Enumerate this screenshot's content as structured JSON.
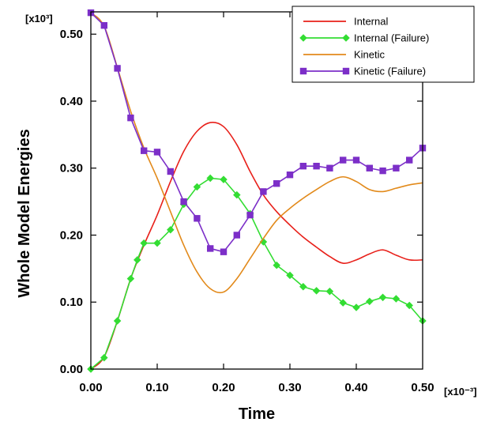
{
  "chart_data": {
    "type": "line",
    "xlabel": "Time",
    "ylabel": "Whole Model Energies",
    "x_multiplier": "[x10⁻³]",
    "y_multiplier": "[x10³]",
    "xlim": [
      0,
      0.5
    ],
    "ylim": [
      0,
      0.5333
    ],
    "x_ticks": [
      "0.00",
      "0.10",
      "0.20",
      "0.30",
      "0.40",
      "0.50"
    ],
    "y_ticks": [
      "0.00",
      "0.10",
      "0.20",
      "0.30",
      "0.40",
      "0.50"
    ],
    "legend_position": "top-right",
    "series": [
      {
        "name": "Internal",
        "color": "#e8201a",
        "marker": "none",
        "x": [
          0.0,
          0.02,
          0.04,
          0.06,
          0.08,
          0.1,
          0.12,
          0.14,
          0.16,
          0.18,
          0.2,
          0.22,
          0.24,
          0.26,
          0.28,
          0.3,
          0.32,
          0.34,
          0.36,
          0.38,
          0.4,
          0.42,
          0.44,
          0.46,
          0.48,
          0.5
        ],
        "y": [
          0.0,
          0.018,
          0.072,
          0.135,
          0.185,
          0.23,
          0.28,
          0.325,
          0.355,
          0.368,
          0.362,
          0.335,
          0.295,
          0.26,
          0.235,
          0.215,
          0.197,
          0.182,
          0.168,
          0.158,
          0.163,
          0.172,
          0.178,
          0.17,
          0.163,
          0.163
        ]
      },
      {
        "name": "Internal (Failure)",
        "color": "#33dd33",
        "marker": "diamond",
        "x": [
          0.0,
          0.02,
          0.04,
          0.06,
          0.07,
          0.08,
          0.1,
          0.12,
          0.14,
          0.16,
          0.18,
          0.2,
          0.22,
          0.24,
          0.26,
          0.28,
          0.3,
          0.32,
          0.34,
          0.36,
          0.38,
          0.4,
          0.42,
          0.44,
          0.46,
          0.48,
          0.5
        ],
        "y": [
          0.0,
          0.017,
          0.072,
          0.135,
          0.163,
          0.188,
          0.188,
          0.208,
          0.246,
          0.272,
          0.285,
          0.283,
          0.26,
          0.232,
          0.19,
          0.155,
          0.14,
          0.123,
          0.117,
          0.116,
          0.099,
          0.092,
          0.101,
          0.107,
          0.105,
          0.095,
          0.072
        ]
      },
      {
        "name": "Kinetic",
        "color": "#e28a1b",
        "marker": "none",
        "x": [
          0.0,
          0.02,
          0.04,
          0.06,
          0.08,
          0.1,
          0.12,
          0.14,
          0.16,
          0.18,
          0.2,
          0.22,
          0.24,
          0.26,
          0.28,
          0.3,
          0.32,
          0.34,
          0.36,
          0.38,
          0.4,
          0.42,
          0.44,
          0.46,
          0.48,
          0.5
        ],
        "y": [
          0.532,
          0.512,
          0.45,
          0.385,
          0.33,
          0.285,
          0.235,
          0.185,
          0.145,
          0.12,
          0.115,
          0.135,
          0.165,
          0.195,
          0.222,
          0.24,
          0.255,
          0.268,
          0.28,
          0.287,
          0.28,
          0.268,
          0.265,
          0.27,
          0.275,
          0.278
        ]
      },
      {
        "name": "Kinetic (Failure)",
        "color": "#7c2fc8",
        "marker": "square",
        "x": [
          0.0,
          0.02,
          0.04,
          0.06,
          0.08,
          0.1,
          0.12,
          0.14,
          0.16,
          0.18,
          0.2,
          0.22,
          0.24,
          0.26,
          0.28,
          0.3,
          0.32,
          0.34,
          0.36,
          0.38,
          0.4,
          0.42,
          0.44,
          0.46,
          0.48,
          0.5
        ],
        "y": [
          0.532,
          0.513,
          0.449,
          0.375,
          0.326,
          0.324,
          0.295,
          0.25,
          0.225,
          0.18,
          0.175,
          0.2,
          0.23,
          0.265,
          0.277,
          0.29,
          0.303,
          0.303,
          0.3,
          0.312,
          0.312,
          0.3,
          0.296,
          0.3,
          0.312,
          0.33
        ]
      }
    ]
  }
}
